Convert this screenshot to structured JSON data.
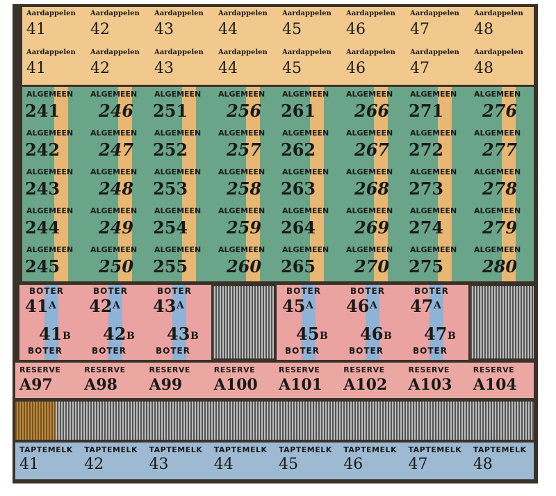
{
  "aardappelen": {
    "rows": [
      [
        {
          "label": "Aardappelen",
          "number": "41"
        },
        {
          "label": "Aardappelen",
          "number": "42"
        },
        {
          "label": "Aardappelen",
          "number": "43"
        },
        {
          "label": "Aardappelen",
          "number": "44"
        },
        {
          "label": "Aardappelen",
          "number": "45"
        },
        {
          "label": "Aardappelen",
          "number": "46"
        },
        {
          "label": "Aardappelen",
          "number": "47"
        },
        {
          "label": "Aardappelen",
          "number": "48"
        }
      ],
      [
        {
          "label": "Aardappelen",
          "number": "41"
        },
        {
          "label": "Aardappelen",
          "number": "42"
        },
        {
          "label": "Aardappelen",
          "number": "43"
        },
        {
          "label": "Aardappelen",
          "number": "44"
        },
        {
          "label": "Aardappelen",
          "number": "45"
        },
        {
          "label": "Aardappelen",
          "number": "46"
        },
        {
          "label": "Aardappelen",
          "number": "47"
        },
        {
          "label": "Aardappelen",
          "number": "48"
        }
      ]
    ]
  },
  "algemeen": {
    "rows": [
      [
        {
          "label": "ALGEMEEN",
          "number": "241"
        },
        {
          "label": "ALGEMEEN",
          "number": "246"
        },
        {
          "label": "ALGEMEEN",
          "number": "251"
        },
        {
          "label": "ALGEMEEN",
          "number": "256"
        },
        {
          "label": "ALGEMEEN",
          "number": "261"
        },
        {
          "label": "ALGEMEEN",
          "number": "266"
        },
        {
          "label": "ALGEMEEN",
          "number": "271"
        },
        {
          "label": "ALGEMEEN",
          "number": "276"
        }
      ],
      [
        {
          "label": "ALGEMEEN",
          "number": "242"
        },
        {
          "label": "ALGEMEEN",
          "number": "247"
        },
        {
          "label": "ALGEMEEN",
          "number": "252"
        },
        {
          "label": "ALGEMEEN",
          "number": "257"
        },
        {
          "label": "ALGEMEEN",
          "number": "262"
        },
        {
          "label": "ALGEMEEN",
          "number": "267"
        },
        {
          "label": "ALGEMEEN",
          "number": "272"
        },
        {
          "label": "ALGEMEEN",
          "number": "277"
        }
      ],
      [
        {
          "label": "ALGEMEEN",
          "number": "243"
        },
        {
          "label": "ALGEMEEN",
          "number": "248"
        },
        {
          "label": "ALGEMEEN",
          "number": "253"
        },
        {
          "label": "ALGEMEEN",
          "number": "258"
        },
        {
          "label": "ALGEMEEN",
          "number": "263"
        },
        {
          "label": "ALGEMEEN",
          "number": "268"
        },
        {
          "label": "ALGEMEEN",
          "number": "273"
        },
        {
          "label": "ALGEMEEN",
          "number": "278"
        }
      ],
      [
        {
          "label": "ALGEMEEN",
          "number": "244"
        },
        {
          "label": "ALGEMEEN",
          "number": "249"
        },
        {
          "label": "ALGEMEEN",
          "number": "254"
        },
        {
          "label": "ALGEMEEN",
          "number": "259"
        },
        {
          "label": "ALGEMEEN",
          "number": "264"
        },
        {
          "label": "ALGEMEEN",
          "number": "269"
        },
        {
          "label": "ALGEMEEN",
          "number": "274"
        },
        {
          "label": "ALGEMEEN",
          "number": "279"
        }
      ],
      [
        {
          "label": "ALGEMEEN",
          "number": "245"
        },
        {
          "label": "ALGEMEEN",
          "number": "250"
        },
        {
          "label": "ALGEMEEN",
          "number": "255"
        },
        {
          "label": "ALGEMEEN",
          "number": "260"
        },
        {
          "label": "ALGEMEEN",
          "number": "265"
        },
        {
          "label": "ALGEMEEN",
          "number": "270"
        },
        {
          "label": "ALGEMEEN",
          "number": "275"
        },
        {
          "label": "ALGEMEEN",
          "number": "280"
        }
      ]
    ]
  },
  "boter": {
    "groups": [
      {
        "coupons": [
          {
            "top": "BOTER",
            "a_number": "41",
            "a": "A",
            "b_number": "41",
            "b": "B",
            "bottom": "BOTER"
          },
          {
            "top": "BOTER",
            "a_number": "42",
            "a": "A",
            "b_number": "42",
            "b": "B",
            "bottom": "BOTER"
          },
          {
            "top": "BOTER",
            "a_number": "43",
            "a": "A",
            "b_number": "43",
            "b": "B",
            "bottom": "BOTER"
          }
        ]
      },
      {
        "coupons": [
          {
            "top": "BOTER",
            "a_number": "45",
            "a": "A",
            "b_number": "45",
            "b": "B",
            "bottom": "BOTER"
          },
          {
            "top": "BOTER",
            "a_number": "46",
            "a": "A",
            "b_number": "46",
            "b": "B",
            "bottom": "BOTER"
          },
          {
            "top": "BOTER",
            "a_number": "47",
            "a": "A",
            "b_number": "47",
            "b": "B",
            "bottom": "BOTER"
          }
        ]
      }
    ]
  },
  "reserve": {
    "coupons": [
      {
        "label": "RESERVE",
        "number": "A97"
      },
      {
        "label": "RESERVE",
        "number": "A98"
      },
      {
        "label": "RESERVE",
        "number": "A99"
      },
      {
        "label": "RESERVE",
        "number": "A100"
      },
      {
        "label": "RESERVE",
        "number": "A101"
      },
      {
        "label": "RESERVE",
        "number": "A102"
      },
      {
        "label": "RESERVE",
        "number": "A103"
      },
      {
        "label": "RESERVE",
        "number": "A104"
      }
    ]
  },
  "taptemelk": {
    "coupons": [
      {
        "label": "TAPTEMELK",
        "number": "41"
      },
      {
        "label": "TAPTEMELK",
        "number": "42"
      },
      {
        "label": "TAPTEMELK",
        "number": "43"
      },
      {
        "label": "TAPTEMELK",
        "number": "44"
      },
      {
        "label": "TAPTEMELK",
        "number": "45"
      },
      {
        "label": "TAPTEMELK",
        "number": "46"
      },
      {
        "label": "TAPTEMELK",
        "number": "47"
      },
      {
        "label": "TAPTEMELK",
        "number": "48"
      }
    ]
  }
}
